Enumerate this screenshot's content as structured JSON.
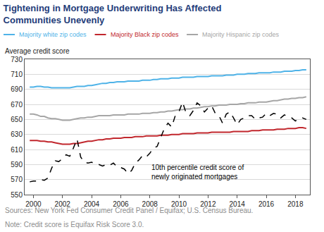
{
  "chart_data": {
    "type": "line",
    "title": [
      "Tightening in Mortgage Underwriting Has Affected",
      "Communities Unevenly"
    ],
    "ylabel": "Average credit score",
    "x": [
      1999.75,
      2000,
      2000.25,
      2000.5,
      2000.75,
      2001,
      2001.25,
      2001.5,
      2001.75,
      2002,
      2002.25,
      2002.5,
      2002.75,
      2003,
      2003.25,
      2003.5,
      2003.75,
      2004,
      2004.25,
      2004.5,
      2004.75,
      2005,
      2005.25,
      2005.5,
      2005.75,
      2006,
      2006.25,
      2006.5,
      2006.75,
      2007,
      2007.25,
      2007.5,
      2007.75,
      2008,
      2008.25,
      2008.5,
      2008.75,
      2009,
      2009.25,
      2009.5,
      2009.75,
      2010,
      2010.25,
      2010.5,
      2010.75,
      2011,
      2011.25,
      2011.5,
      2011.75,
      2012,
      2012.25,
      2012.5,
      2012.75,
      2013,
      2013.25,
      2013.5,
      2013.75,
      2014,
      2014.25,
      2014.5,
      2014.75,
      2015,
      2015.25,
      2015.5,
      2015.75,
      2016,
      2016.25,
      2016.5,
      2016.75,
      2017,
      2017.25,
      2017.5,
      2017.75,
      2018,
      2018.25,
      2018.5,
      2018.75
    ],
    "series": [
      {
        "name": "Majority white zip codes",
        "color": "#4fb3e8",
        "line_style": "solid",
        "values": [
          693,
          693,
          694,
          694,
          693,
          693,
          692,
          692,
          692,
          692,
          692,
          692,
          693,
          694,
          694,
          694,
          695,
          695,
          696,
          697,
          698,
          698,
          699,
          699,
          700,
          700,
          700,
          701,
          701,
          701,
          701,
          702,
          702,
          702,
          703,
          703,
          704,
          704,
          704,
          705,
          705,
          705,
          706,
          706,
          706,
          706,
          707,
          707,
          707,
          707,
          708,
          708,
          708,
          708,
          709,
          709,
          709,
          710,
          710,
          710,
          711,
          711,
          711,
          712,
          712,
          712,
          712,
          713,
          713,
          713,
          714,
          714,
          714,
          715,
          715,
          716,
          716
        ]
      },
      {
        "name": "Majority Black zip codes",
        "color": "#c1272d",
        "line_style": "solid",
        "values": [
          622,
          622,
          622,
          621,
          621,
          620,
          620,
          619,
          618,
          617,
          617,
          617,
          618,
          618,
          619,
          620,
          621,
          621,
          622,
          623,
          623,
          624,
          624,
          625,
          625,
          625,
          626,
          626,
          626,
          627,
          627,
          627,
          628,
          628,
          628,
          628,
          629,
          629,
          629,
          630,
          630,
          630,
          631,
          631,
          631,
          631,
          632,
          632,
          632,
          632,
          633,
          633,
          633,
          633,
          633,
          633,
          634,
          634,
          634,
          634,
          634,
          635,
          635,
          635,
          636,
          636,
          636,
          636,
          637,
          637,
          637,
          638,
          638,
          638,
          639,
          639,
          638
        ]
      },
      {
        "name": "Majority Hispanic zip codes",
        "color": "#a6a6a6",
        "line_style": "solid",
        "values": [
          657,
          657,
          656,
          654,
          654,
          652,
          651,
          651,
          650,
          649,
          649,
          649,
          650,
          651,
          652,
          652,
          653,
          653,
          654,
          655,
          655,
          655,
          655,
          656,
          656,
          656,
          656,
          657,
          657,
          657,
          657,
          658,
          658,
          658,
          659,
          659,
          660,
          660,
          661,
          661,
          662,
          663,
          663,
          664,
          664,
          665,
          665,
          666,
          667,
          667,
          668,
          668,
          669,
          669,
          669,
          670,
          670,
          670,
          671,
          671,
          672,
          672,
          672,
          673,
          673,
          673,
          674,
          675,
          675,
          676,
          677,
          677,
          678,
          678,
          679,
          679,
          680
        ]
      },
      {
        "color": "#000000",
        "line_style": "dashed",
        "values": [
          567,
          568,
          568,
          570,
          569,
          572,
          585,
          595,
          594,
          598,
          603,
          601,
          612,
          624,
          600,
          593,
          592,
          593,
          591,
          590,
          588,
          590,
          589,
          592,
          587,
          586,
          584,
          578,
          582,
          592,
          596,
          602,
          600,
          605,
          612,
          614,
          626,
          638,
          645,
          640,
          655,
          660,
          673,
          658,
          655,
          662,
          672,
          668,
          660,
          665,
          668,
          658,
          655,
          645,
          657,
          660,
          652,
          643,
          650,
          652,
          655,
          655,
          650,
          652,
          653,
          658,
          655,
          658,
          657,
          652,
          656,
          654,
          652,
          648,
          651,
          652,
          650
        ]
      }
    ],
    "xlim": [
      1999.4,
      2019
    ],
    "xticks": [
      2000,
      2002,
      2004,
      2006,
      2008,
      2010,
      2012,
      2014,
      2016,
      2018
    ],
    "ylim": [
      550,
      730
    ],
    "yticks": [
      550,
      570,
      590,
      610,
      630,
      650,
      670,
      690,
      710,
      730
    ],
    "grid": true,
    "legend": "top",
    "annotations": [
      {
        "text": [
          "10th percentile credit score of",
          "newly originated mortgages"
        ],
        "x": 2008,
        "y": 580
      }
    ],
    "source": "Sources: New York Fed Consumer Credit Panel / Equifax; U.S. Census Bureau.",
    "note": "Note: Credit score is Equifax Risk Score 3.0."
  }
}
